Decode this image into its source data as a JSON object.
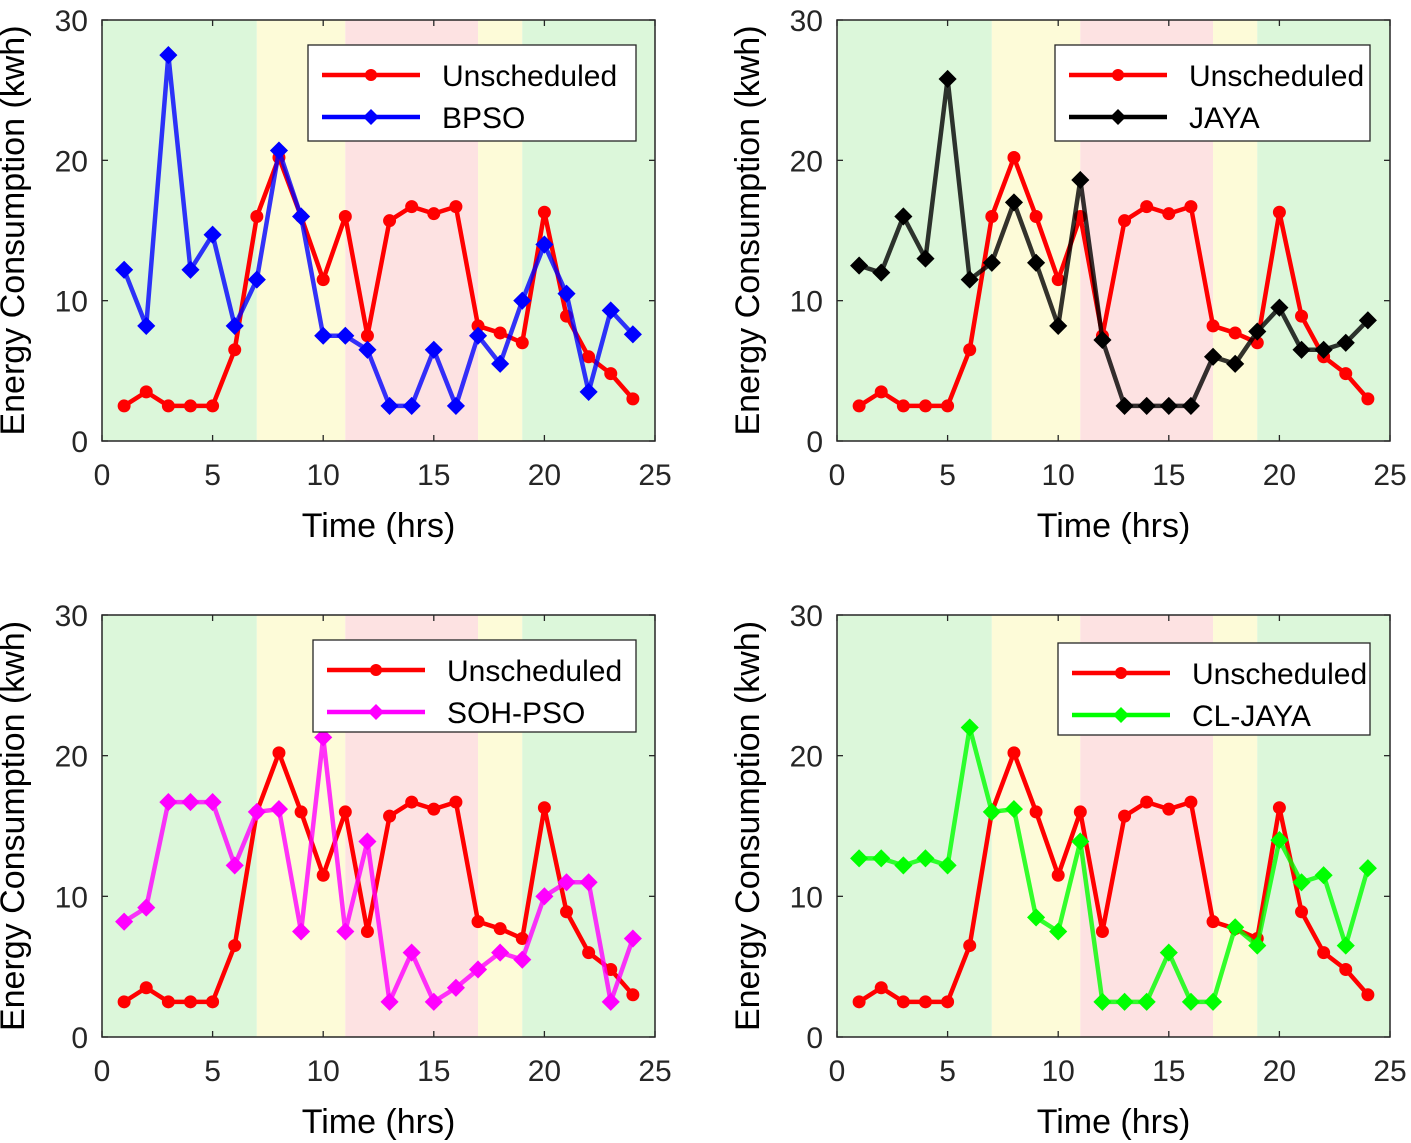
{
  "chart_data": [
    {
      "type": "line",
      "xlabel": "Time (hrs)",
      "ylabel": "Energy Consumption (kwh)",
      "xlim": [
        0,
        25
      ],
      "ylim": [
        0,
        30
      ],
      "xticks": [
        0,
        5,
        10,
        15,
        20,
        25
      ],
      "yticks": [
        0,
        10,
        20,
        30
      ],
      "bands": [
        {
          "from": 0,
          "to": 7,
          "color": "#dcf7da"
        },
        {
          "from": 7,
          "to": 11,
          "color": "#fdfbd8"
        },
        {
          "from": 11,
          "to": 17,
          "color": "#fde2e2"
        },
        {
          "from": 17,
          "to": 19,
          "color": "#fdfbd8"
        },
        {
          "from": 19,
          "to": 25,
          "color": "#dcf7da"
        }
      ],
      "legend_position": "top-right",
      "x": [
        1,
        2,
        3,
        4,
        5,
        6,
        7,
        8,
        9,
        10,
        11,
        12,
        13,
        14,
        15,
        16,
        17,
        18,
        19,
        20,
        21,
        22,
        23,
        24
      ],
      "series": [
        {
          "name": "Unscheduled",
          "color": "#ff0000",
          "marker": "circle",
          "values": [
            2.5,
            3.5,
            2.5,
            2.5,
            2.5,
            6.5,
            16,
            20.2,
            16,
            11.5,
            16,
            7.5,
            15.7,
            16.7,
            16.2,
            16.7,
            8.2,
            7.7,
            7,
            16.3,
            8.9,
            6,
            4.8,
            3
          ]
        },
        {
          "name": "BPSO",
          "color": "#0000ff",
          "marker": "diamond",
          "values": [
            12.2,
            8.2,
            27.5,
            12.2,
            14.7,
            8.2,
            11.5,
            20.7,
            16,
            7.5,
            7.5,
            6.5,
            2.5,
            2.5,
            6.5,
            2.5,
            7.5,
            5.5,
            10,
            14,
            10.5,
            3.5,
            9.3,
            7.6
          ]
        }
      ]
    },
    {
      "type": "line",
      "xlabel": "Time (hrs)",
      "ylabel": "Energy Consumption (kwh)",
      "xlim": [
        0,
        25
      ],
      "ylim": [
        0,
        30
      ],
      "xticks": [
        0,
        5,
        10,
        15,
        20,
        25
      ],
      "yticks": [
        0,
        10,
        20,
        30
      ],
      "bands": [
        {
          "from": 0,
          "to": 7,
          "color": "#dcf7da"
        },
        {
          "from": 7,
          "to": 11,
          "color": "#fdfbd8"
        },
        {
          "from": 11,
          "to": 17,
          "color": "#fde2e2"
        },
        {
          "from": 17,
          "to": 19,
          "color": "#fdfbd8"
        },
        {
          "from": 19,
          "to": 25,
          "color": "#dcf7da"
        }
      ],
      "legend_position": "top-right",
      "x": [
        1,
        2,
        3,
        4,
        5,
        6,
        7,
        8,
        9,
        10,
        11,
        12,
        13,
        14,
        15,
        16,
        17,
        18,
        19,
        20,
        21,
        22,
        23,
        24
      ],
      "series": [
        {
          "name": "Unscheduled",
          "color": "#ff0000",
          "marker": "circle",
          "values": [
            2.5,
            3.5,
            2.5,
            2.5,
            2.5,
            6.5,
            16,
            20.2,
            16,
            11.5,
            16,
            7.5,
            15.7,
            16.7,
            16.2,
            16.7,
            8.2,
            7.7,
            7,
            16.3,
            8.9,
            6,
            4.8,
            3
          ]
        },
        {
          "name": "JAYA",
          "color": "#000000",
          "marker": "diamond",
          "values": [
            12.5,
            12,
            16,
            13,
            25.8,
            11.5,
            12.7,
            17,
            12.7,
            8.2,
            18.6,
            7.2,
            2.5,
            2.5,
            2.5,
            2.5,
            6,
            5.5,
            7.8,
            9.5,
            6.5,
            6.5,
            7,
            8.6
          ]
        }
      ]
    },
    {
      "type": "line",
      "xlabel": "Time (hrs)",
      "ylabel": "Energy Consumption (kwh)",
      "xlim": [
        0,
        25
      ],
      "ylim": [
        0,
        30
      ],
      "xticks": [
        0,
        5,
        10,
        15,
        20,
        25
      ],
      "yticks": [
        0,
        10,
        20,
        30
      ],
      "bands": [
        {
          "from": 0,
          "to": 7,
          "color": "#dcf7da"
        },
        {
          "from": 7,
          "to": 11,
          "color": "#fdfbd8"
        },
        {
          "from": 11,
          "to": 17,
          "color": "#fde2e2"
        },
        {
          "from": 17,
          "to": 19,
          "color": "#fdfbd8"
        },
        {
          "from": 19,
          "to": 25,
          "color": "#dcf7da"
        }
      ],
      "legend_position": "top-right",
      "x": [
        1,
        2,
        3,
        4,
        5,
        6,
        7,
        8,
        9,
        10,
        11,
        12,
        13,
        14,
        15,
        16,
        17,
        18,
        19,
        20,
        21,
        22,
        23,
        24
      ],
      "series": [
        {
          "name": "Unscheduled",
          "color": "#ff0000",
          "marker": "circle",
          "values": [
            2.5,
            3.5,
            2.5,
            2.5,
            2.5,
            6.5,
            16,
            20.2,
            16,
            11.5,
            16,
            7.5,
            15.7,
            16.7,
            16.2,
            16.7,
            8.2,
            7.7,
            7,
            16.3,
            8.9,
            6,
            4.8,
            3
          ]
        },
        {
          "name": "SOH-PSO",
          "color": "#ff00ff",
          "marker": "diamond",
          "values": [
            8.2,
            9.2,
            16.7,
            16.7,
            16.7,
            12.2,
            16,
            16.2,
            7.5,
            21.3,
            7.5,
            13.9,
            2.5,
            6,
            2.5,
            3.5,
            4.8,
            6,
            5.5,
            10,
            11,
            11,
            2.5,
            7
          ]
        }
      ]
    },
    {
      "type": "line",
      "xlabel": "Time (hrs)",
      "ylabel": "Energy Consumption (kwh)",
      "xlim": [
        0,
        25
      ],
      "ylim": [
        0,
        30
      ],
      "xticks": [
        0,
        5,
        10,
        15,
        20,
        25
      ],
      "yticks": [
        0,
        10,
        20,
        30
      ],
      "bands": [
        {
          "from": 0,
          "to": 7,
          "color": "#dcf7da"
        },
        {
          "from": 7,
          "to": 11,
          "color": "#fdfbd8"
        },
        {
          "from": 11,
          "to": 17,
          "color": "#fde2e2"
        },
        {
          "from": 17,
          "to": 19,
          "color": "#fdfbd8"
        },
        {
          "from": 19,
          "to": 25,
          "color": "#dcf7da"
        }
      ],
      "legend_position": "top-right",
      "x": [
        1,
        2,
        3,
        4,
        5,
        6,
        7,
        8,
        9,
        10,
        11,
        12,
        13,
        14,
        15,
        16,
        17,
        18,
        19,
        20,
        21,
        22,
        23,
        24
      ],
      "series": [
        {
          "name": "Unscheduled",
          "color": "#ff0000",
          "marker": "circle",
          "values": [
            2.5,
            3.5,
            2.5,
            2.5,
            2.5,
            6.5,
            16,
            20.2,
            16,
            11.5,
            16,
            7.5,
            15.7,
            16.7,
            16.2,
            16.7,
            8.2,
            7.7,
            7,
            16.3,
            8.9,
            6,
            4.8,
            3
          ]
        },
        {
          "name": "CL-JAYA",
          "color": "#00ff00",
          "marker": "diamond",
          "values": [
            12.7,
            12.7,
            12.2,
            12.7,
            12.2,
            22,
            16,
            16.2,
            8.5,
            7.5,
            13.9,
            2.5,
            2.5,
            2.5,
            6,
            2.5,
            2.5,
            7.8,
            6.5,
            14,
            11,
            11.5,
            6.5,
            12
          ]
        }
      ]
    }
  ]
}
